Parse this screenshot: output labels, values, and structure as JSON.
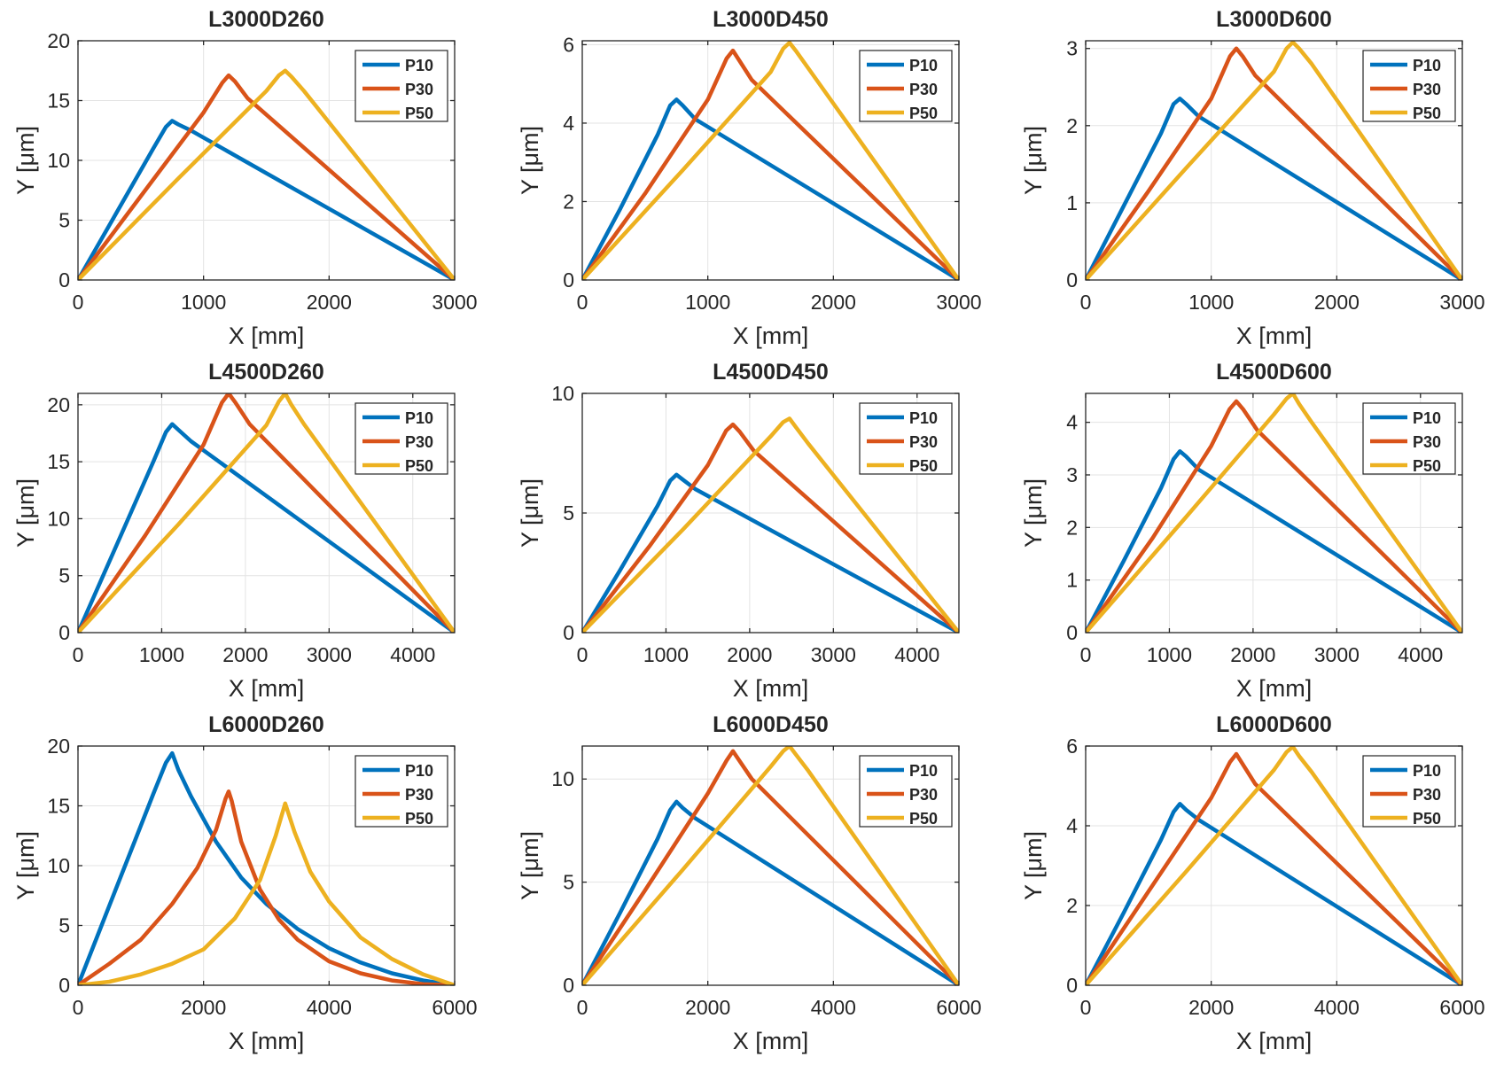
{
  "colors": {
    "P10": "#0072BD",
    "P30": "#D95319",
    "P50": "#EDB120"
  },
  "chart_data": [
    {
      "type": "line",
      "title": "L3000D260",
      "xlabel": "X [mm]",
      "ylabel": "Y [μm]",
      "xlim": [
        0,
        3000
      ],
      "ylim": [
        0,
        20
      ],
      "xticks": [
        0,
        1000,
        2000,
        3000
      ],
      "xtick_labels": [
        "0",
        "1000",
        "2000",
        "3000"
      ],
      "yticks": [
        0,
        5,
        10,
        15,
        20
      ],
      "ytick_labels": [
        "0",
        "5",
        "10",
        "15",
        "20"
      ],
      "legend": "top-right",
      "series": [
        {
          "name": "P10",
          "x": [
            0,
            300,
            600,
            700,
            750,
            800,
            900,
            3000
          ],
          "y": [
            0,
            5.5,
            11,
            12.8,
            13.3,
            13.0,
            12.5,
            0
          ]
        },
        {
          "name": "P30",
          "x": [
            0,
            500,
            1000,
            1150,
            1200,
            1250,
            1350,
            3000
          ],
          "y": [
            0,
            7,
            14,
            16.5,
            17.1,
            16.6,
            15.2,
            0
          ]
        },
        {
          "name": "P50",
          "x": [
            0,
            800,
            1500,
            1600,
            1650,
            1700,
            1800,
            3000
          ],
          "y": [
            0,
            8.5,
            15.8,
            17.1,
            17.5,
            17.0,
            15.8,
            0
          ]
        }
      ]
    },
    {
      "type": "line",
      "title": "L3000D450",
      "xlabel": "X [mm]",
      "ylabel": "Y [μm]",
      "xlim": [
        0,
        3000
      ],
      "ylim": [
        0,
        6.1
      ],
      "xticks": [
        0,
        1000,
        2000,
        3000
      ],
      "xtick_labels": [
        "0",
        "1000",
        "2000",
        "3000"
      ],
      "yticks": [
        0,
        2,
        4,
        6
      ],
      "ytick_labels": [
        "0",
        "2",
        "4",
        "6"
      ],
      "legend": "top-right",
      "series": [
        {
          "name": "P10",
          "x": [
            0,
            300,
            600,
            700,
            750,
            800,
            900,
            3000
          ],
          "y": [
            0,
            1.8,
            3.7,
            4.45,
            4.6,
            4.45,
            4.1,
            0
          ]
        },
        {
          "name": "P30",
          "x": [
            0,
            500,
            1000,
            1150,
            1200,
            1250,
            1350,
            3000
          ],
          "y": [
            0,
            2.2,
            4.6,
            5.65,
            5.85,
            5.6,
            5.1,
            0
          ]
        },
        {
          "name": "P50",
          "x": [
            0,
            800,
            1500,
            1600,
            1650,
            1700,
            1800,
            3000
          ],
          "y": [
            0,
            2.8,
            5.3,
            5.9,
            6.05,
            5.85,
            5.4,
            0
          ]
        }
      ]
    },
    {
      "type": "line",
      "title": "L3000D600",
      "xlabel": "X [mm]",
      "ylabel": "Y [μm]",
      "xlim": [
        0,
        3000
      ],
      "ylim": [
        0,
        3.1
      ],
      "xticks": [
        0,
        1000,
        2000,
        3000
      ],
      "xtick_labels": [
        "0",
        "1000",
        "2000",
        "3000"
      ],
      "yticks": [
        0,
        1,
        2,
        3
      ],
      "ytick_labels": [
        "0",
        "1",
        "2",
        "3"
      ],
      "legend": "top-right",
      "series": [
        {
          "name": "P10",
          "x": [
            0,
            300,
            600,
            700,
            750,
            800,
            900,
            3000
          ],
          "y": [
            0,
            0.95,
            1.9,
            2.28,
            2.35,
            2.28,
            2.12,
            0
          ]
        },
        {
          "name": "P30",
          "x": [
            0,
            500,
            1000,
            1150,
            1200,
            1250,
            1350,
            3000
          ],
          "y": [
            0,
            1.15,
            2.35,
            2.9,
            3.0,
            2.9,
            2.65,
            0
          ]
        },
        {
          "name": "P50",
          "x": [
            0,
            800,
            1500,
            1600,
            1650,
            1700,
            1800,
            3000
          ],
          "y": [
            0,
            1.45,
            2.7,
            3.0,
            3.08,
            3.0,
            2.8,
            0
          ]
        }
      ]
    },
    {
      "type": "line",
      "title": "L4500D260",
      "xlabel": "X [mm]",
      "ylabel": "Y [μm]",
      "xlim": [
        0,
        4500
      ],
      "ylim": [
        0,
        21
      ],
      "xticks": [
        0,
        1000,
        2000,
        3000,
        4000
      ],
      "xtick_labels": [
        "0",
        "1000",
        "2000",
        "3000",
        "4000"
      ],
      "yticks": [
        0,
        5,
        10,
        15,
        20
      ],
      "ytick_labels": [
        "0",
        "5",
        "10",
        "15",
        "20"
      ],
      "legend": "top-right",
      "series": [
        {
          "name": "P10",
          "x": [
            0,
            450,
            900,
            1050,
            1125,
            1200,
            1350,
            4500
          ],
          "y": [
            0,
            7.5,
            15,
            17.6,
            18.3,
            17.8,
            16.8,
            0
          ]
        },
        {
          "name": "P30",
          "x": [
            0,
            800,
            1500,
            1720,
            1800,
            1880,
            2050,
            4500
          ],
          "y": [
            0,
            8.5,
            16.5,
            20.2,
            21.0,
            20.2,
            18.3,
            0
          ]
        },
        {
          "name": "P50",
          "x": [
            0,
            1200,
            2250,
            2400,
            2475,
            2550,
            2700,
            4500
          ],
          "y": [
            0,
            9.5,
            18.2,
            20.3,
            21.0,
            20.0,
            18.3,
            0
          ]
        }
      ]
    },
    {
      "type": "line",
      "title": "L4500D450",
      "xlabel": "X [mm]",
      "ylabel": "Y [μm]",
      "xlim": [
        0,
        4500
      ],
      "ylim": [
        0,
        10
      ],
      "xticks": [
        0,
        1000,
        2000,
        3000,
        4000
      ],
      "xtick_labels": [
        "0",
        "1000",
        "2000",
        "3000",
        "4000"
      ],
      "yticks": [
        0,
        5,
        10
      ],
      "ytick_labels": [
        "0",
        "5",
        "10"
      ],
      "legend": "top-right",
      "series": [
        {
          "name": "P10",
          "x": [
            0,
            450,
            900,
            1050,
            1125,
            1200,
            1350,
            4500
          ],
          "y": [
            0,
            2.6,
            5.3,
            6.35,
            6.6,
            6.4,
            6.0,
            0
          ]
        },
        {
          "name": "P30",
          "x": [
            0,
            800,
            1500,
            1720,
            1800,
            1880,
            2050,
            4500
          ],
          "y": [
            0,
            3.6,
            7.0,
            8.45,
            8.7,
            8.4,
            7.6,
            0
          ]
        },
        {
          "name": "P50",
          "x": [
            0,
            1200,
            2250,
            2400,
            2475,
            2550,
            2700,
            4500
          ],
          "y": [
            0,
            4.3,
            8.2,
            8.8,
            8.95,
            8.6,
            7.9,
            0
          ]
        }
      ]
    },
    {
      "type": "line",
      "title": "L4500D600",
      "xlabel": "X [mm]",
      "ylabel": "Y [μm]",
      "xlim": [
        0,
        4500
      ],
      "ylim": [
        0,
        4.55
      ],
      "xticks": [
        0,
        1000,
        2000,
        3000,
        4000
      ],
      "xtick_labels": [
        "0",
        "1000",
        "2000",
        "3000",
        "4000"
      ],
      "yticks": [
        0,
        1,
        2,
        3,
        4
      ],
      "ytick_labels": [
        "0",
        "1",
        "2",
        "3",
        "4"
      ],
      "legend": "top-right",
      "series": [
        {
          "name": "P10",
          "x": [
            0,
            450,
            900,
            1050,
            1125,
            1200,
            1350,
            4500
          ],
          "y": [
            0,
            1.35,
            2.75,
            3.3,
            3.45,
            3.35,
            3.1,
            0
          ]
        },
        {
          "name": "P30",
          "x": [
            0,
            800,
            1500,
            1720,
            1800,
            1880,
            2050,
            4500
          ],
          "y": [
            0,
            1.8,
            3.55,
            4.25,
            4.4,
            4.25,
            3.85,
            0
          ]
        },
        {
          "name": "P50",
          "x": [
            0,
            1200,
            2250,
            2400,
            2475,
            2550,
            2700,
            4500
          ],
          "y": [
            0,
            2.2,
            4.15,
            4.45,
            4.55,
            4.35,
            4.0,
            0
          ]
        }
      ]
    },
    {
      "type": "line",
      "title": "L6000D260",
      "xlabel": "X [mm]",
      "ylabel": "Y [μm]",
      "xlim": [
        0,
        6000
      ],
      "ylim": [
        0,
        20
      ],
      "xticks": [
        0,
        2000,
        4000,
        6000
      ],
      "xtick_labels": [
        "0",
        "2000",
        "4000",
        "6000"
      ],
      "yticks": [
        0,
        5,
        10,
        15,
        20
      ],
      "ytick_labels": [
        "0",
        "5",
        "10",
        "15",
        "20"
      ],
      "legend": "top-right",
      "series": [
        {
          "name": "P10",
          "x": [
            0,
            300,
            600,
            900,
            1200,
            1400,
            1500,
            1600,
            1800,
            2200,
            2600,
            3000,
            3500,
            4000,
            4500,
            5000,
            5500,
            6000
          ],
          "y": [
            0,
            4.0,
            8.0,
            12.0,
            16.0,
            18.6,
            19.4,
            18.0,
            15.8,
            12.0,
            9.0,
            6.8,
            4.7,
            3.1,
            1.9,
            1.0,
            0.4,
            0
          ]
        },
        {
          "name": "P30",
          "x": [
            0,
            500,
            1000,
            1500,
            1900,
            2200,
            2350,
            2400,
            2450,
            2600,
            2900,
            3200,
            3500,
            4000,
            4500,
            5000,
            5500,
            6000
          ],
          "y": [
            0,
            1.8,
            3.8,
            6.8,
            9.8,
            13.0,
            15.6,
            16.2,
            15.4,
            12.0,
            8.0,
            5.5,
            3.8,
            2.0,
            1.0,
            0.4,
            0.1,
            0
          ]
        },
        {
          "name": "P50",
          "x": [
            0,
            500,
            1000,
            1500,
            2000,
            2500,
            2900,
            3150,
            3300,
            3450,
            3700,
            4000,
            4500,
            5000,
            5500,
            6000
          ],
          "y": [
            0,
            0.3,
            0.9,
            1.8,
            3.0,
            5.6,
            8.8,
            12.5,
            15.2,
            12.8,
            9.5,
            7.0,
            4.0,
            2.2,
            0.9,
            0
          ]
        }
      ]
    },
    {
      "type": "line",
      "title": "L6000D450",
      "xlabel": "X [mm]",
      "ylabel": "Y [μm]",
      "xlim": [
        0,
        6000
      ],
      "ylim": [
        0,
        11.6
      ],
      "xticks": [
        0,
        2000,
        4000,
        6000
      ],
      "xtick_labels": [
        "0",
        "2000",
        "4000",
        "6000"
      ],
      "yticks": [
        0,
        5,
        10
      ],
      "ytick_labels": [
        "0",
        "5",
        "10"
      ],
      "legend": "top-right",
      "series": [
        {
          "name": "P10",
          "x": [
            0,
            600,
            1200,
            1400,
            1500,
            1600,
            1800,
            6000
          ],
          "y": [
            0,
            3.5,
            7.1,
            8.5,
            8.9,
            8.6,
            8.1,
            0
          ]
        },
        {
          "name": "P30",
          "x": [
            0,
            1000,
            2000,
            2300,
            2400,
            2500,
            2700,
            6000
          ],
          "y": [
            0,
            4.6,
            9.3,
            10.9,
            11.35,
            10.9,
            10.0,
            0
          ]
        },
        {
          "name": "P50",
          "x": [
            0,
            1600,
            3000,
            3200,
            3300,
            3400,
            3600,
            6000
          ],
          "y": [
            0,
            5.6,
            10.6,
            11.35,
            11.6,
            11.2,
            10.4,
            0
          ]
        }
      ]
    },
    {
      "type": "line",
      "title": "L6000D600",
      "xlabel": "X [mm]",
      "ylabel": "Y [μm]",
      "xlim": [
        0,
        6000
      ],
      "ylim": [
        0,
        6
      ],
      "xticks": [
        0,
        2000,
        4000,
        6000
      ],
      "xtick_labels": [
        "0",
        "2000",
        "4000",
        "6000"
      ],
      "yticks": [
        0,
        2,
        4,
        6
      ],
      "ytick_labels": [
        "0",
        "2",
        "4",
        "6"
      ],
      "legend": "top-right",
      "series": [
        {
          "name": "P10",
          "x": [
            0,
            600,
            1200,
            1400,
            1500,
            1600,
            1800,
            6000
          ],
          "y": [
            0,
            1.8,
            3.65,
            4.35,
            4.55,
            4.4,
            4.15,
            0
          ]
        },
        {
          "name": "P30",
          "x": [
            0,
            1000,
            2000,
            2300,
            2400,
            2500,
            2700,
            6000
          ],
          "y": [
            0,
            2.35,
            4.7,
            5.6,
            5.8,
            5.55,
            5.05,
            0
          ]
        },
        {
          "name": "P50",
          "x": [
            0,
            1600,
            3000,
            3200,
            3300,
            3400,
            3600,
            6000
          ],
          "y": [
            0,
            2.85,
            5.4,
            5.85,
            5.98,
            5.75,
            5.35,
            0
          ]
        }
      ]
    }
  ]
}
